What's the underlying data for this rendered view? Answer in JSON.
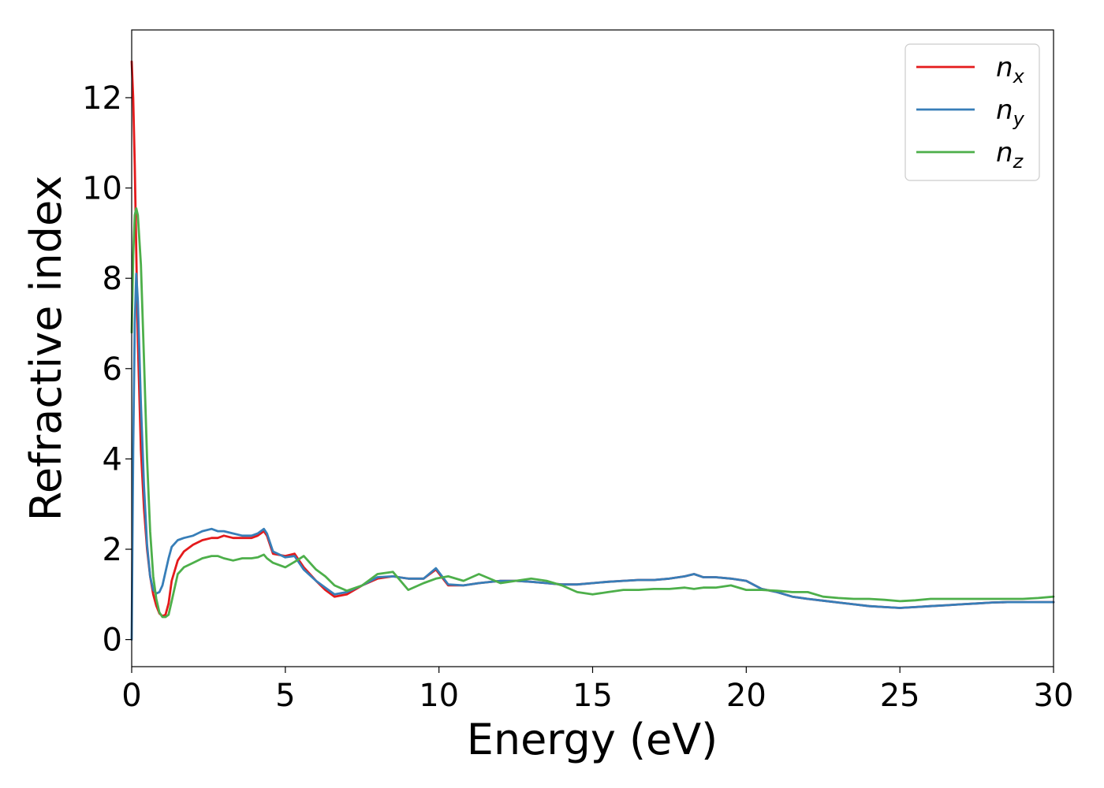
{
  "chart_data": {
    "type": "line",
    "title": "",
    "xlabel": "Energy (eV)",
    "ylabel": "Refractive index",
    "xlim": [
      0,
      30
    ],
    "ylim": [
      -0.6,
      13.5
    ],
    "xticks": [
      0,
      5,
      10,
      15,
      20,
      25,
      30
    ],
    "yticks": [
      0,
      2,
      4,
      6,
      8,
      10,
      12
    ],
    "grid": false,
    "legend_position": "top-right",
    "series": [
      {
        "name": "n",
        "subscript": "x",
        "color": "#e41a1c",
        "x": [
          0,
          0.05,
          0.1,
          0.15,
          0.2,
          0.3,
          0.4,
          0.5,
          0.6,
          0.7,
          0.8,
          0.9,
          1.0,
          1.1,
          1.2,
          1.3,
          1.5,
          1.7,
          2.0,
          2.3,
          2.6,
          2.8,
          3.0,
          3.3,
          3.6,
          3.9,
          4.1,
          4.3,
          4.4,
          4.6,
          5.0,
          5.3,
          5.6,
          6.0,
          6.3,
          6.6,
          7.0,
          7.5,
          8.0,
          8.5,
          9.0,
          9.5,
          9.9,
          10.3,
          10.8,
          11.3,
          12.0,
          12.5,
          13.0,
          13.5,
          14.0,
          14.5,
          15.0,
          15.5,
          16.0,
          16.5,
          17.0,
          17.5,
          18.0,
          18.3,
          18.6,
          19.0,
          19.5,
          20.0,
          20.5,
          21.0,
          21.5,
          22.0,
          22.5,
          23.0,
          23.5,
          24.0,
          24.5,
          25.0,
          25.5,
          26.0,
          26.5,
          27.0,
          27.5,
          28.0,
          28.5,
          29.0,
          29.5,
          30.0
        ],
        "values": [
          12.8,
          12.0,
          10.5,
          8.6,
          6.6,
          4.2,
          2.9,
          2.0,
          1.4,
          1.0,
          0.75,
          0.58,
          0.52,
          0.55,
          0.8,
          1.3,
          1.75,
          1.95,
          2.1,
          2.2,
          2.25,
          2.25,
          2.3,
          2.25,
          2.25,
          2.25,
          2.3,
          2.4,
          2.3,
          1.9,
          1.85,
          1.9,
          1.6,
          1.3,
          1.1,
          0.95,
          1.0,
          1.2,
          1.35,
          1.4,
          1.35,
          1.35,
          1.55,
          1.2,
          1.2,
          1.25,
          1.3,
          1.3,
          1.28,
          1.25,
          1.22,
          1.22,
          1.25,
          1.28,
          1.3,
          1.32,
          1.32,
          1.35,
          1.4,
          1.45,
          1.38,
          1.38,
          1.35,
          1.3,
          1.12,
          1.05,
          0.95,
          0.9,
          0.86,
          0.82,
          0.78,
          0.74,
          0.72,
          0.7,
          0.72,
          0.74,
          0.76,
          0.78,
          0.8,
          0.82,
          0.83,
          0.83,
          0.83,
          0.83
        ]
      },
      {
        "name": "n",
        "subscript": "y",
        "color": "#377eb8",
        "x": [
          0,
          0.05,
          0.1,
          0.15,
          0.2,
          0.3,
          0.4,
          0.5,
          0.6,
          0.7,
          0.8,
          0.9,
          1.0,
          1.1,
          1.2,
          1.3,
          1.5,
          1.7,
          2.0,
          2.3,
          2.6,
          2.8,
          3.0,
          3.3,
          3.6,
          3.9,
          4.1,
          4.3,
          4.4,
          4.6,
          5.0,
          5.3,
          5.6,
          6.0,
          6.3,
          6.6,
          7.0,
          7.5,
          8.0,
          8.5,
          9.0,
          9.5,
          9.9,
          10.3,
          10.8,
          11.3,
          12.0,
          12.5,
          13.0,
          13.5,
          14.0,
          14.5,
          15.0,
          15.5,
          16.0,
          16.5,
          17.0,
          17.5,
          18.0,
          18.3,
          18.6,
          19.0,
          19.5,
          20.0,
          20.5,
          21.0,
          21.5,
          22.0,
          22.5,
          23.0,
          23.5,
          24.0,
          24.5,
          25.0,
          25.5,
          26.0,
          26.5,
          27.0,
          27.5,
          28.0,
          28.5,
          29.0,
          29.5,
          30.0
        ],
        "values": [
          0.0,
          4.2,
          7.0,
          8.1,
          7.5,
          5.2,
          3.4,
          2.1,
          1.4,
          1.1,
          1.02,
          1.05,
          1.2,
          1.5,
          1.8,
          2.05,
          2.2,
          2.25,
          2.3,
          2.4,
          2.45,
          2.4,
          2.4,
          2.35,
          2.3,
          2.3,
          2.35,
          2.45,
          2.35,
          1.95,
          1.82,
          1.85,
          1.55,
          1.3,
          1.15,
          1.0,
          1.05,
          1.2,
          1.38,
          1.4,
          1.35,
          1.35,
          1.58,
          1.22,
          1.2,
          1.25,
          1.3,
          1.3,
          1.28,
          1.25,
          1.22,
          1.22,
          1.25,
          1.28,
          1.3,
          1.32,
          1.32,
          1.35,
          1.4,
          1.45,
          1.38,
          1.38,
          1.35,
          1.3,
          1.12,
          1.05,
          0.95,
          0.9,
          0.86,
          0.82,
          0.78,
          0.74,
          0.72,
          0.7,
          0.72,
          0.74,
          0.76,
          0.78,
          0.8,
          0.82,
          0.83,
          0.83,
          0.83,
          0.83
        ]
      },
      {
        "name": "n",
        "subscript": "z",
        "color": "#4daf4a",
        "x": [
          0,
          0.05,
          0.1,
          0.15,
          0.2,
          0.3,
          0.4,
          0.5,
          0.6,
          0.7,
          0.8,
          0.9,
          1.0,
          1.1,
          1.2,
          1.3,
          1.5,
          1.7,
          2.0,
          2.3,
          2.6,
          2.8,
          3.0,
          3.3,
          3.6,
          3.9,
          4.1,
          4.3,
          4.4,
          4.6,
          5.0,
          5.3,
          5.6,
          6.0,
          6.3,
          6.6,
          7.0,
          7.5,
          8.0,
          8.5,
          9.0,
          9.5,
          9.9,
          10.3,
          10.8,
          11.3,
          12.0,
          12.5,
          13.0,
          13.5,
          14.0,
          14.5,
          15.0,
          15.5,
          16.0,
          16.5,
          17.0,
          17.5,
          18.0,
          18.3,
          18.6,
          19.0,
          19.5,
          20.0,
          20.5,
          21.0,
          21.5,
          22.0,
          22.5,
          23.0,
          23.5,
          24.0,
          24.5,
          25.0,
          25.5,
          26.0,
          26.5,
          27.0,
          27.5,
          28.0,
          28.5,
          29.0,
          29.5,
          30.0
        ],
        "values": [
          6.8,
          8.5,
          9.4,
          9.55,
          9.4,
          8.3,
          6.2,
          4.0,
          2.4,
          1.4,
          0.9,
          0.6,
          0.5,
          0.5,
          0.55,
          0.85,
          1.45,
          1.6,
          1.7,
          1.8,
          1.85,
          1.85,
          1.8,
          1.75,
          1.8,
          1.8,
          1.82,
          1.88,
          1.8,
          1.7,
          1.6,
          1.72,
          1.85,
          1.55,
          1.4,
          1.2,
          1.08,
          1.2,
          1.45,
          1.5,
          1.1,
          1.25,
          1.35,
          1.4,
          1.3,
          1.45,
          1.25,
          1.3,
          1.35,
          1.3,
          1.2,
          1.05,
          1.0,
          1.05,
          1.1,
          1.1,
          1.12,
          1.12,
          1.15,
          1.12,
          1.15,
          1.15,
          1.2,
          1.1,
          1.1,
          1.08,
          1.05,
          1.05,
          0.95,
          0.92,
          0.9,
          0.9,
          0.88,
          0.85,
          0.87,
          0.9,
          0.9,
          0.9,
          0.9,
          0.9,
          0.9,
          0.9,
          0.92,
          0.95
        ]
      }
    ]
  }
}
